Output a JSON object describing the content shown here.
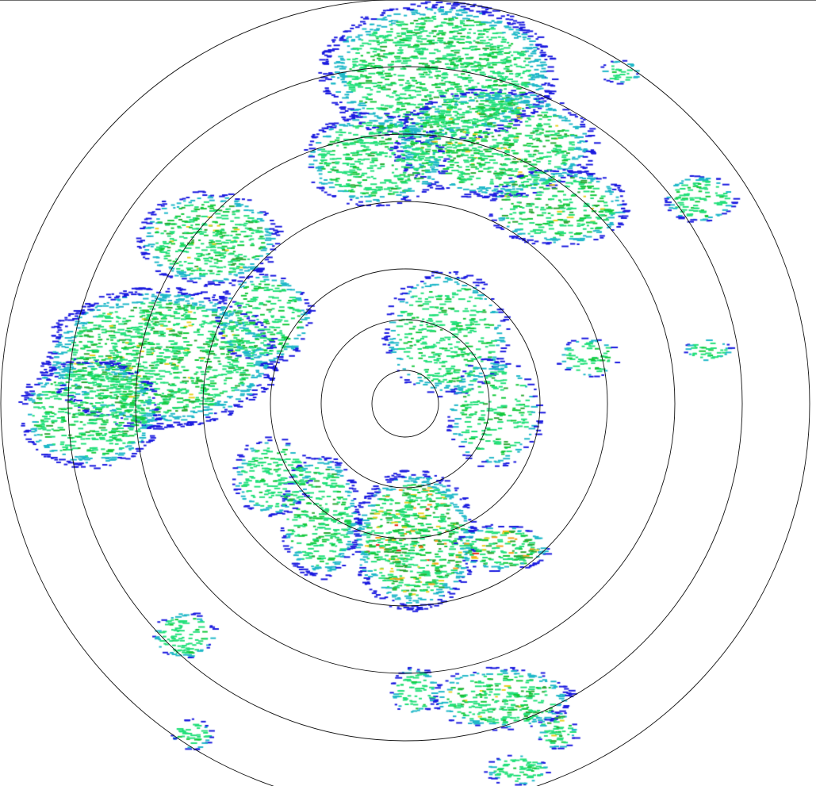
{
  "radar": {
    "range_rings": 7,
    "color_scale": [
      "#1a1adf",
      "#1fb8c8",
      "#22e07a",
      "#12c83a",
      "#2aa834",
      "#e8d020",
      "#f5a015",
      "#e82010"
    ],
    "echo_regions": [
      {
        "name": "north",
        "intensity": "moderate"
      },
      {
        "name": "northwest",
        "intensity": "moderate"
      },
      {
        "name": "west",
        "intensity": "moderate"
      },
      {
        "name": "southeast-near",
        "intensity": "heavy"
      },
      {
        "name": "south-far",
        "intensity": "light"
      },
      {
        "name": "east",
        "intensity": "light"
      }
    ]
  }
}
